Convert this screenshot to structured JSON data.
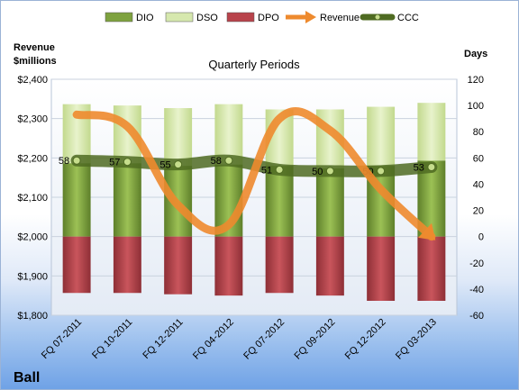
{
  "chart_data": {
    "type": "bar",
    "title": "Quarterly Periods",
    "company": "Ball",
    "left_axis_label_line1": "Revenue",
    "left_axis_label_line2": "$millions",
    "right_axis_label": "Days",
    "categories": [
      "FQ 07-2011",
      "FQ 10-2011",
      "FQ 12-2011",
      "FQ 04-2012",
      "FQ 07-2012",
      "FQ 09-2012",
      "FQ 12-2012",
      "FQ 03-2013"
    ],
    "left_ylim": [
      1800,
      2400
    ],
    "left_ticks": [
      "$1,800",
      "$1,900",
      "$2,000",
      "$2,100",
      "$2,200",
      "$2,300",
      "$2,400"
    ],
    "left_tick_values": [
      1800,
      1900,
      2000,
      2100,
      2200,
      2300,
      2400
    ],
    "right_ylim": [
      -60,
      120
    ],
    "right_ticks": [
      -60,
      -40,
      -20,
      0,
      20,
      40,
      60,
      80,
      100,
      120
    ],
    "grid": true,
    "legend_position": "top",
    "series": [
      {
        "name": "DIO",
        "type": "stacked-bar",
        "axis": "right",
        "color": "#7ea23f",
        "values": [
          56,
          56,
          54,
          55,
          54,
          52,
          54,
          58
        ]
      },
      {
        "name": "DSO",
        "type": "stacked-bar",
        "axis": "right",
        "color": "#d6e8ae",
        "values": [
          45,
          44,
          44,
          46,
          43,
          45,
          45,
          44
        ]
      },
      {
        "name": "DPO",
        "type": "stacked-bar",
        "axis": "right",
        "color": "#b8434b",
        "values": [
          -43,
          -43,
          -44,
          -45,
          -43,
          -45,
          -49,
          -49
        ]
      },
      {
        "name": "Revenue",
        "type": "line",
        "axis": "left",
        "color": "#f08a2a",
        "values": [
          2310,
          2280,
          2080,
          2030,
          2300,
          2270,
          2120,
          2000
        ]
      },
      {
        "name": "CCC",
        "type": "line",
        "axis": "right",
        "color": "#5a7a26",
        "values": [
          58,
          57,
          55,
          58,
          51,
          50,
          50,
          53
        ],
        "labels": [
          "58",
          "57",
          "55",
          "58",
          "51",
          "50",
          "50",
          "53"
        ]
      }
    ]
  }
}
